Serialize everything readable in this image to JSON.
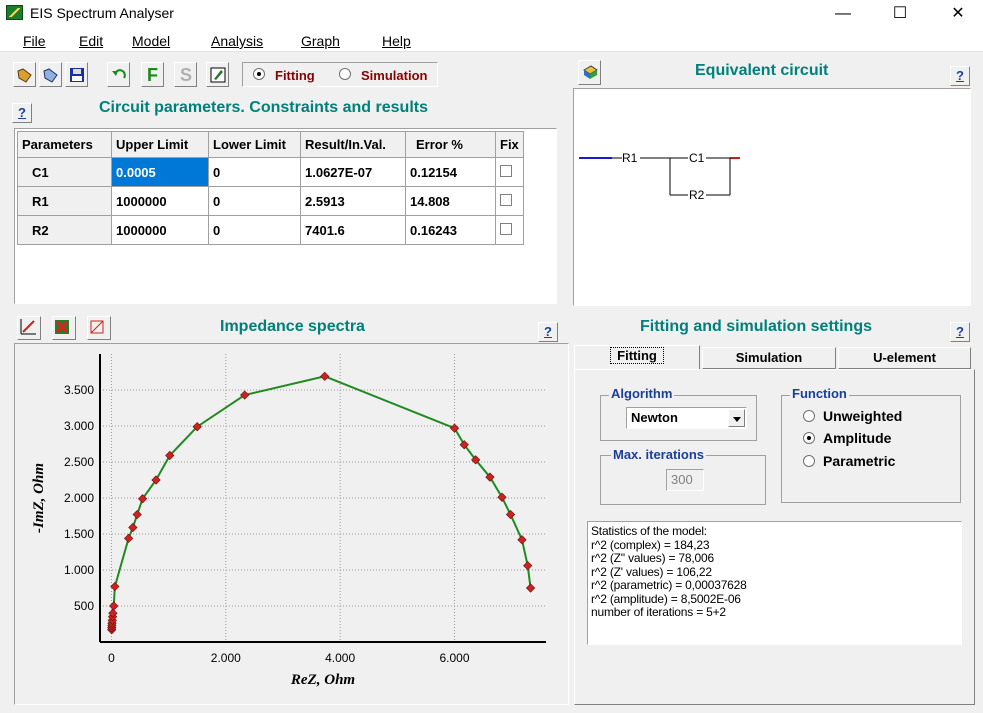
{
  "window": {
    "title": "EIS Spectrum Analyser",
    "minimize": "—",
    "maximize": "☐",
    "close": "✕"
  },
  "menu": [
    "File",
    "Edit",
    "Model",
    "Analysis",
    "Graph",
    "Help"
  ],
  "toolbar": {
    "buttons": [
      "open-icon",
      "save-icon",
      "save-disk-icon",
      "undo-icon",
      "fit-icon",
      "simulate-icon",
      "edit-icon"
    ],
    "fit_letter": "F",
    "sim_letter": "S",
    "mode_options": [
      "Fitting",
      "Simulation"
    ],
    "mode_selected": "Fitting"
  },
  "params_section": {
    "help": "?",
    "title": "Circuit parameters. Constraints and results",
    "columns": [
      "Parameters",
      "Upper Limit",
      "Lower Limit",
      "Result/In.Val.",
      "Error %",
      "Fix"
    ],
    "rows": [
      {
        "name": "C1",
        "upper": "0.0005",
        "lower": "0",
        "result": "1.0627E-07",
        "error": "0.12154",
        "fix": false
      },
      {
        "name": "R1",
        "upper": "1000000",
        "lower": "0",
        "result": "2.5913",
        "error": "14.808",
        "fix": false
      },
      {
        "name": "R2",
        "upper": "1000000",
        "lower": "0",
        "result": "7401.6",
        "error": "0.16243",
        "fix": false
      }
    ]
  },
  "circuit_section": {
    "title": "Equivalent circuit",
    "help": "?",
    "elements": [
      "R1",
      "C1",
      "R2"
    ]
  },
  "spectra_section": {
    "title": "Impedance spectra",
    "help": "?"
  },
  "chart_data": {
    "type": "scatter",
    "title": "",
    "xlabel": "ReZ, Ohm",
    "ylabel": "-ImZ, Ohm",
    "xlim": [
      -200,
      7600
    ],
    "ylim": [
      0,
      4000
    ],
    "xticks": [
      {
        "v": 0,
        "label": "0"
      },
      {
        "v": 2000,
        "label": "2.000"
      },
      {
        "v": 4000,
        "label": "4.000"
      },
      {
        "v": 6000,
        "label": "6.000"
      }
    ],
    "yticks": [
      {
        "v": 500,
        "label": "500"
      },
      {
        "v": 1000,
        "label": "1.000"
      },
      {
        "v": 1500,
        "label": "1.500"
      },
      {
        "v": 2000,
        "label": "2.000"
      },
      {
        "v": 2500,
        "label": "2.500"
      },
      {
        "v": 3000,
        "label": "3.000"
      },
      {
        "v": 3500,
        "label": "3.500"
      }
    ],
    "grid": true,
    "series": [
      {
        "color": "#cc2222",
        "x": [
          5,
          6,
          8,
          10,
          15,
          20,
          25,
          40,
          60,
          300,
          375,
          450,
          545,
          780,
          1020,
          1500,
          2330,
          3730,
          6000,
          6170,
          6370,
          6620,
          6830,
          6980,
          7180,
          7280,
          7330
        ],
        "y": [
          170,
          200,
          230,
          260,
          300,
          350,
          400,
          500,
          770,
          1440,
          1590,
          1770,
          1990,
          2250,
          2590,
          2990,
          3430,
          3690,
          2970,
          2740,
          2530,
          2290,
          2010,
          1770,
          1420,
          1060,
          750
        ]
      }
    ],
    "fit_color": "#1f8a1f"
  },
  "settings_section": {
    "title": "Fitting and simulation settings",
    "help": "?",
    "tabs": [
      "Fitting",
      "Simulation",
      "U-element"
    ],
    "active_tab": "Fitting",
    "algorithm_label": "Algorithm",
    "algorithm_value": "Newton",
    "max_iter_label": "Max. iterations",
    "max_iter_value": "300",
    "function_label": "Function",
    "function_options": [
      "Unweighted",
      "Amplitude",
      "Parametric"
    ],
    "function_selected": "Amplitude",
    "stats": [
      "Statistics of the model:",
      "r^2 (complex) = 184,23",
      "r^2 (Z'' values) = 78,006",
      "r^2 (Z' values) = 106,22",
      "r^2 (parametric) = 0,00037628",
      "r^2 (amplitude) = 8,5002E-06",
      "number of iterations = 5+2"
    ]
  }
}
